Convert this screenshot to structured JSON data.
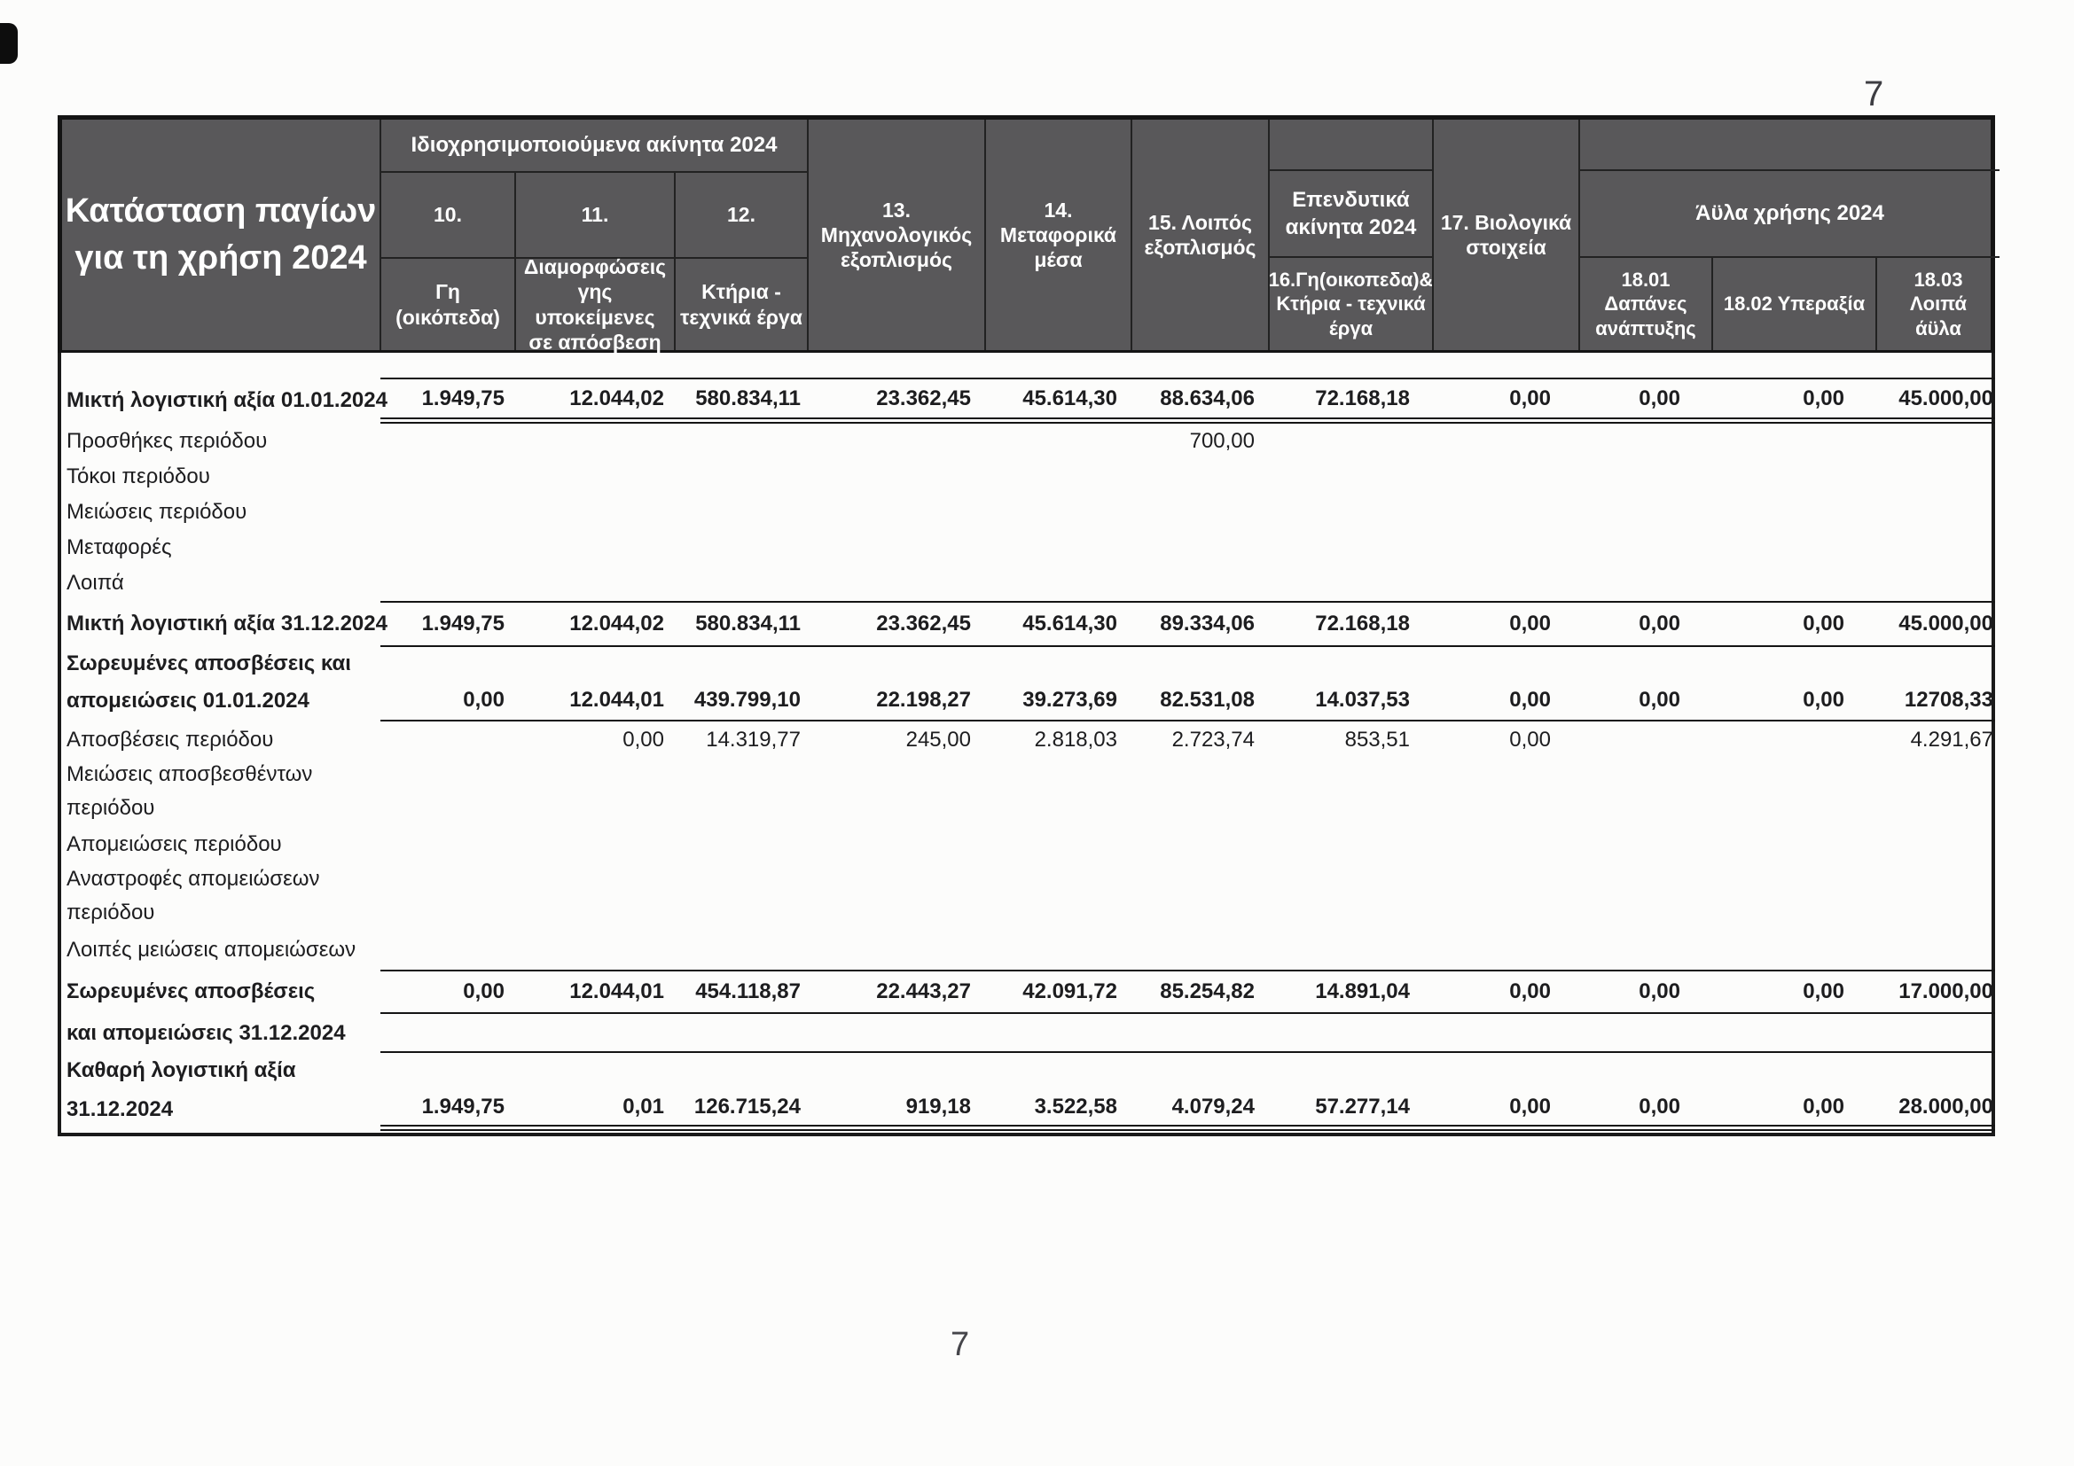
{
  "page": {
    "top_page_number": "7",
    "bottom_page_number": "7"
  },
  "colors": {
    "header_bg": "#59585a",
    "header_text": "#ffffff",
    "rule_color": "#141414"
  },
  "table": {
    "title": "Κατάσταση παγίων\nγια τη χρήση 2024",
    "header": {
      "group_own_use": "Ιδιοχρησιμοποιούμενα ακίνητα 2024",
      "col10_num": "10.",
      "col10_name": "Γη (οικόπεδα)",
      "col11_num": "11.",
      "col11_name": "Διαμορφώσεις\nγης υποκείμενες\nσε απόσβεση",
      "col12_num": "12.",
      "col12_name": "Κτήρια -\nτεχνικά έργα",
      "col13": "13.\nΜηχανολογικός\nεξοπλισμός",
      "col14": "14.\nΜεταφορικά\nμέσα",
      "col15": "15. Λοιπός\nεξοπλισμός",
      "group_investment": "Επενδυτικά\nακίνητα 2024",
      "col16": "16.Γη(οικοπεδα)&\nΚτήρια - τεχνικά\nέργα",
      "col17": "17. Βιολογικά\nστοιχεία",
      "group_intangible": "Άϋλα χρήσης 2024",
      "col1801": "18.01\nΔαπάνες\nανάπτυξης",
      "col1802": "18.02 Υπεραξία",
      "col1803": "18.03\nΛοιπά\nάϋλα"
    },
    "lines": [
      {
        "label": "Μικτή λογιστική αξία 01.01.2024",
        "bold": true,
        "rule_top": true,
        "rule_bottom": "double",
        "h": 52,
        "values": [
          "1.949,75",
          "12.044,02",
          "580.834,11",
          "23.362,45",
          "45.614,30",
          "88.634,06",
          "72.168,18",
          "0,00",
          "0,00",
          "0,00",
          "45.000,00"
        ]
      },
      {
        "label": "Προσθήκες περιόδου",
        "h": 40,
        "values": [
          "",
          "",
          "",
          "",
          "",
          "700,00",
          "",
          "",
          "",
          "",
          ""
        ]
      },
      {
        "label": "Τόκοι περιόδου",
        "h": 40,
        "values": []
      },
      {
        "label": "Μειώσεις περιόδου",
        "h": 40,
        "values": []
      },
      {
        "label": "Μεταφορές",
        "h": 40,
        "values": []
      },
      {
        "label": "Λοιπά",
        "h": 40,
        "values": []
      },
      {
        "label": "Μικτή λογιστική αξία 31.12.2024",
        "bold": true,
        "rule_top": true,
        "rule_bottom": "single",
        "h": 52,
        "values": [
          "1.949,75",
          "12.044,02",
          "580.834,11",
          "23.362,45",
          "45.614,30",
          "89.334,06",
          "72.168,18",
          "0,00",
          "0,00",
          "0,00",
          "45.000,00"
        ]
      },
      {
        "label": "Σωρευμένες αποσβέσεις και",
        "bold": true,
        "h": 38,
        "values": []
      },
      {
        "label": "απομειώσεις 01.01.2024",
        "bold": true,
        "rule_bottom": "single",
        "h": 46,
        "values": [
          "0,00",
          "12.044,01",
          "439.799,10",
          "22.198,27",
          "39.273,69",
          "82.531,08",
          "14.037,53",
          "0,00",
          "0,00",
          "0,00",
          "12708,33"
        ]
      },
      {
        "label": "Αποσβέσεις περιόδου",
        "h": 42,
        "values": [
          "",
          "0,00",
          "14.319,77",
          "245,00",
          "2.818,03",
          "2.723,74",
          "853,51",
          "0,00",
          "",
          "",
          "4.291,67"
        ]
      },
      {
        "label": "Μειώσεις αποσβεσθέντων",
        "h": 36,
        "values": []
      },
      {
        "label": "περιόδου",
        "h": 40,
        "values": []
      },
      {
        "label": "Απομειώσεις περιόδου",
        "h": 42,
        "values": []
      },
      {
        "label": "Αναστροφές απομειώσεων",
        "h": 36,
        "values": []
      },
      {
        "label": "περιόδου",
        "h": 40,
        "values": []
      },
      {
        "label": "Λοιπές μειώσεις απομειώσεων",
        "h": 44,
        "values": []
      },
      {
        "label": "Σωρευμένες αποσβέσεις",
        "bold": true,
        "rule_top": true,
        "rule_bottom": "single",
        "h": 50,
        "values": [
          "0,00",
          "12.044,01",
          "454.118,87",
          "22.443,27",
          "42.091,72",
          "85.254,82",
          "14.891,04",
          "0,00",
          "0,00",
          "0,00",
          "17.000,00"
        ]
      },
      {
        "label": "και απομειώσεις 31.12.2024",
        "bold": true,
        "rule_bottom": "single",
        "h": 44,
        "values": []
      },
      {
        "label": "Καθαρή λογιστική αξία",
        "bold": true,
        "h": 40,
        "values": []
      },
      {
        "label": "31.12.2024",
        "bold": true,
        "rule_bottom": "double",
        "h": 48,
        "values": [
          "1.949,75",
          "0,01",
          "126.715,24",
          "919,18",
          "3.522,58",
          "4.079,24",
          "57.277,14",
          "0,00",
          "0,00",
          "0,00",
          "28.000,00"
        ]
      }
    ]
  }
}
